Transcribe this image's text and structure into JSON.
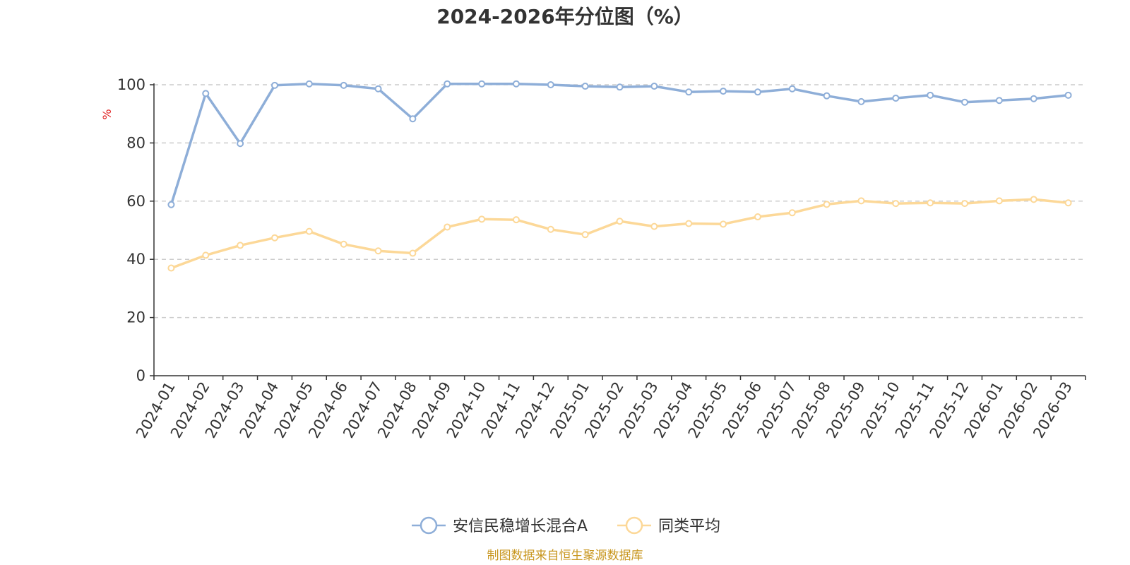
{
  "chart_data": {
    "type": "line",
    "title": "2024-2026年分位图（%）",
    "ylabel": "%",
    "ylim": [
      0,
      100
    ],
    "yticks": [
      0,
      20,
      40,
      60,
      80,
      100
    ],
    "grid": true,
    "legend_position": "bottom-center",
    "categories": [
      "2024-01",
      "2024-02",
      "2024-03",
      "2024-04",
      "2024-05",
      "2024-06",
      "2024-07",
      "2024-08",
      "2024-09",
      "2024-10",
      "2024-11",
      "2024-12",
      "2025-01",
      "2025-02",
      "2025-03",
      "2025-04",
      "2025-05",
      "2025-06",
      "2025-07",
      "2025-08",
      "2025-09",
      "2025-10",
      "2025-11",
      "2025-12",
      "2026-01",
      "2026-02",
      "2026-03"
    ],
    "series": [
      {
        "name": "安信民稳增长混合A",
        "color": "#8eaed8",
        "values": [
          58.8,
          97.0,
          79.8,
          99.8,
          100.3,
          99.8,
          98.6,
          88.3,
          100.3,
          100.3,
          100.3,
          100.0,
          99.5,
          99.2,
          99.5,
          97.5,
          97.8,
          97.5,
          98.6,
          96.2,
          94.2,
          95.4,
          96.4,
          94.0,
          94.6,
          95.2,
          96.4
        ]
      },
      {
        "name": "同类平均",
        "color": "#fcd898",
        "values": [
          37.0,
          41.4,
          44.8,
          47.4,
          49.6,
          45.2,
          42.9,
          42.1,
          51.1,
          53.8,
          53.6,
          50.3,
          48.5,
          53.1,
          51.3,
          52.3,
          52.1,
          54.6,
          56.0,
          58.9,
          60.1,
          59.2,
          59.4,
          59.2,
          60.1,
          60.6,
          59.4
        ]
      }
    ],
    "source": "制图数据来自恒生聚源数据库",
    "source_color": "#c8961e",
    "ylabel_color": "#e02020",
    "axis_color": "#333333",
    "grid_color": "#cccccc"
  }
}
